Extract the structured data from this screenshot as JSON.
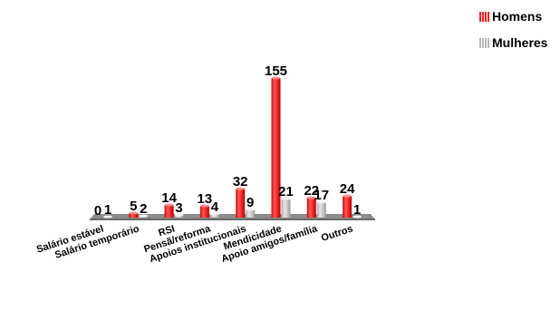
{
  "chart_data": {
    "type": "bar",
    "categories": [
      "Salário estável",
      "Salário temporário",
      "RSI",
      "Pensã/reforma",
      "Apoios institucionais",
      "Mendicidade",
      "Apoio amigos/família",
      "Outros"
    ],
    "series": [
      {
        "name": "Homens",
        "values": [
          0,
          5,
          14,
          13,
          32,
          155,
          22,
          24
        ],
        "color": "#ff1f1f"
      },
      {
        "name": "Mulheres",
        "values": [
          1,
          2,
          3,
          4,
          9,
          21,
          17,
          1
        ],
        "color": "#c8c8c8"
      }
    ],
    "value_labels": [
      [
        "0",
        "5",
        "14",
        "13",
        "32",
        "155",
        "22",
        "24"
      ],
      [
        "1",
        "2",
        "3",
        "4",
        "9",
        "21",
        "17",
        "1"
      ]
    ],
    "ylim": [
      0,
      155
    ],
    "legend_position": "top-right",
    "grid": false,
    "style": "3d-bars-on-floor"
  }
}
